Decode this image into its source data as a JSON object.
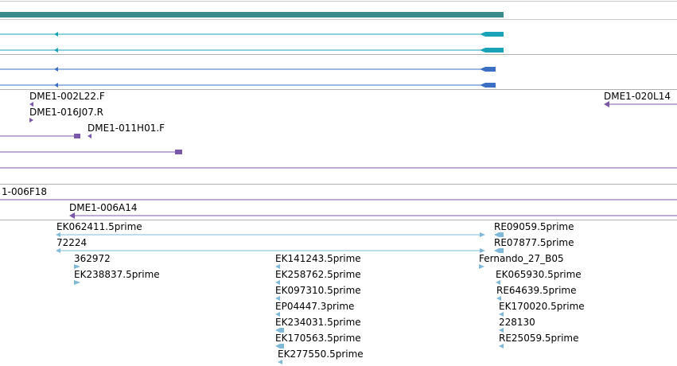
{
  "colors": {
    "gene": "#3a8c8c",
    "transcript_teal": "#1aa3b8",
    "transcript_blue": "#3a6fc4",
    "clone": "#7a57a8",
    "est": "#7fb8d8",
    "divider": "#b0b0b0"
  },
  "clone_labels": [
    {
      "id": "dme1-002l22",
      "text": "DME1-002L22.F"
    },
    {
      "id": "dme1-016j07",
      "text": "DME1-016J07.R"
    },
    {
      "id": "dme1-011h01",
      "text": "DME1-011H01.F"
    },
    {
      "id": "dme1-020l14",
      "text": "DME1-020L14"
    },
    {
      "id": "dme1-006f18",
      "text": "1-006F18"
    },
    {
      "id": "dme1-006a14",
      "text": "DME1-006A14"
    }
  ],
  "est_labels": [
    {
      "id": "ek062411",
      "text": "EK062411.5prime"
    },
    {
      "id": "72224",
      "text": "72224"
    },
    {
      "id": "362972",
      "text": "362972"
    },
    {
      "id": "ek238837",
      "text": "EK238837.5prime"
    },
    {
      "id": "ek141243",
      "text": "EK141243.5prime"
    },
    {
      "id": "ek258762",
      "text": "EK258762.5prime"
    },
    {
      "id": "ek097310",
      "text": "EK097310.5prime"
    },
    {
      "id": "ep04447",
      "text": "EP04447.3prime"
    },
    {
      "id": "ek234031",
      "text": "EK234031.5prime"
    },
    {
      "id": "ek170563",
      "text": "EK170563.5prime"
    },
    {
      "id": "ek277550",
      "text": "EK277550.5prime"
    },
    {
      "id": "re09059",
      "text": "RE09059.5prime"
    },
    {
      "id": "re07877",
      "text": "RE07877.5prime"
    },
    {
      "id": "fernando27",
      "text": "Fernando_27_B05"
    },
    {
      "id": "ek065930",
      "text": "EK065930.5prime"
    },
    {
      "id": "re64639",
      "text": "RE64639.5prime"
    },
    {
      "id": "ek170020",
      "text": "EK170020.5prime"
    },
    {
      "id": "228130",
      "text": "228130"
    },
    {
      "id": "re25059",
      "text": "RE25059.5prime"
    }
  ]
}
